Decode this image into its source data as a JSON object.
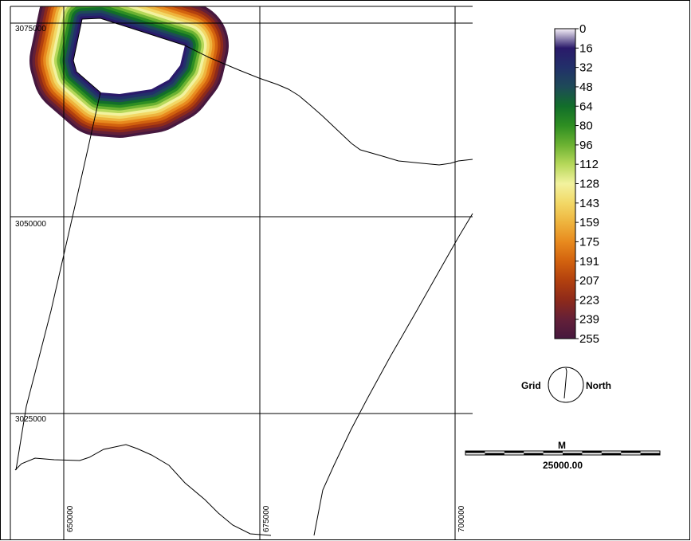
{
  "map": {
    "grid": {
      "y_labels": [
        "3075000",
        "3050000",
        "3025000"
      ],
      "x_labels": [
        "650000",
        "675000",
        "700000"
      ]
    }
  },
  "legend": {
    "labels": [
      "0",
      "16",
      "32",
      "48",
      "64",
      "80",
      "96",
      "112",
      "128",
      "143",
      "159",
      "175",
      "191",
      "207",
      "223",
      "239",
      "255"
    ],
    "colors": [
      "#f6f0f8",
      "#2a1a6a",
      "#22306a",
      "#1e4a58",
      "#126e2a",
      "#2e8e22",
      "#6cb232",
      "#b6d85a",
      "#f2f29e",
      "#f2d866",
      "#eeb43e",
      "#e88a1e",
      "#d2620e",
      "#b2400e",
      "#8e2a1a",
      "#642038",
      "#46183e"
    ]
  },
  "north_arrow": {
    "left_label": "Grid",
    "right_label": "North"
  },
  "scale_bar": {
    "unit": "M",
    "length_label": "25000.00"
  }
}
